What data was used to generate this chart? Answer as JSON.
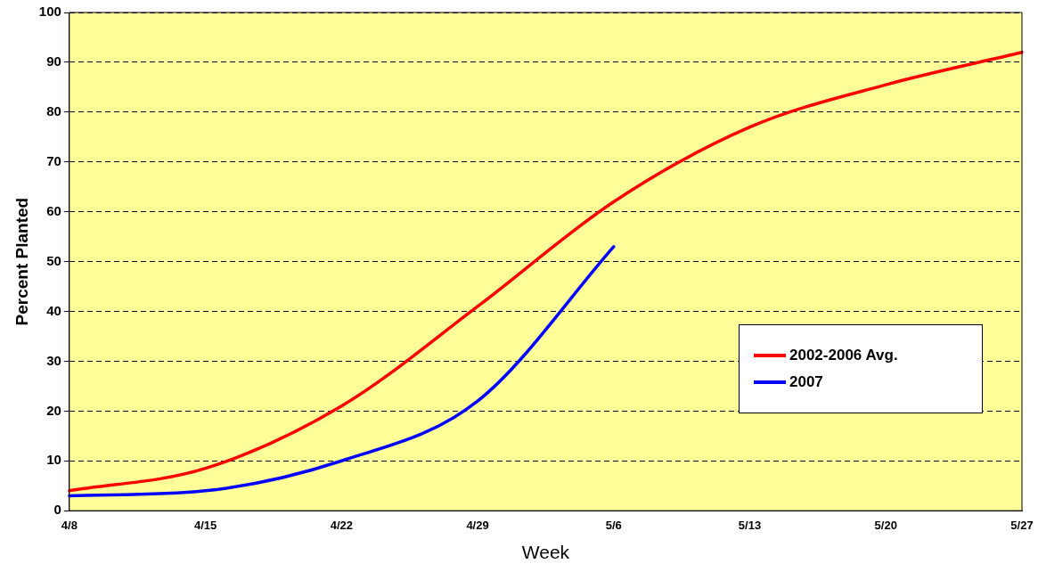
{
  "chart_data": {
    "type": "line",
    "xlabel": "Week",
    "ylabel": "Percent Planted",
    "categories": [
      "4/8",
      "4/15",
      "4/22",
      "4/29",
      "5/6",
      "5/13",
      "5/20",
      "5/27"
    ],
    "series": [
      {
        "name": "2002-2006 Avg.",
        "color": "#ff0000",
        "values": [
          4,
          8.5,
          21,
          41,
          62,
          77,
          85.5,
          92
        ]
      },
      {
        "name": "2007",
        "color": "#0000ff",
        "values": [
          3,
          4,
          10,
          22,
          53,
          null,
          null,
          null
        ]
      }
    ],
    "ylim": [
      0,
      100
    ],
    "yticks": [
      0,
      10,
      20,
      30,
      40,
      50,
      60,
      70,
      80,
      90,
      100
    ],
    "grid": "y",
    "legend": "right",
    "marker": "none",
    "line_style": "solid"
  }
}
